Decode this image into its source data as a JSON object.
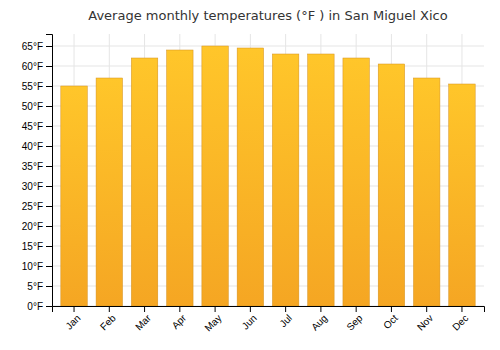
{
  "chart_data": {
    "type": "bar",
    "title": "Average monthly temperatures (°F ) in San Miguel Xico",
    "categories": [
      "Jan",
      "Feb",
      "Mar",
      "Apr",
      "May",
      "Jun",
      "Jul",
      "Aug",
      "Sep",
      "Oct",
      "Nov",
      "Dec"
    ],
    "values": [
      55,
      57,
      62,
      64,
      65,
      64.5,
      63,
      63,
      62,
      60.5,
      57,
      55.5
    ],
    "color": "#F5A623",
    "ylim": [
      0,
      68
    ],
    "yticks": [
      {
        "value": 0,
        "label": "0°F"
      },
      {
        "value": 5,
        "label": "5°F"
      },
      {
        "value": 10,
        "label": "10°F"
      },
      {
        "value": 15,
        "label": "15°F"
      },
      {
        "value": 20,
        "label": "20°F"
      },
      {
        "value": 25,
        "label": "25°F"
      },
      {
        "value": 30,
        "label": "30°F"
      },
      {
        "value": 35,
        "label": "35°F"
      },
      {
        "value": 40,
        "label": "40°F"
      },
      {
        "value": 45,
        "label": "45°F"
      },
      {
        "value": 50,
        "label": "50°F"
      },
      {
        "value": 55,
        "label": "55°F"
      },
      {
        "value": 60,
        "label": "60°F"
      },
      {
        "value": 65,
        "label": "65°F"
      }
    ],
    "grid": true
  }
}
